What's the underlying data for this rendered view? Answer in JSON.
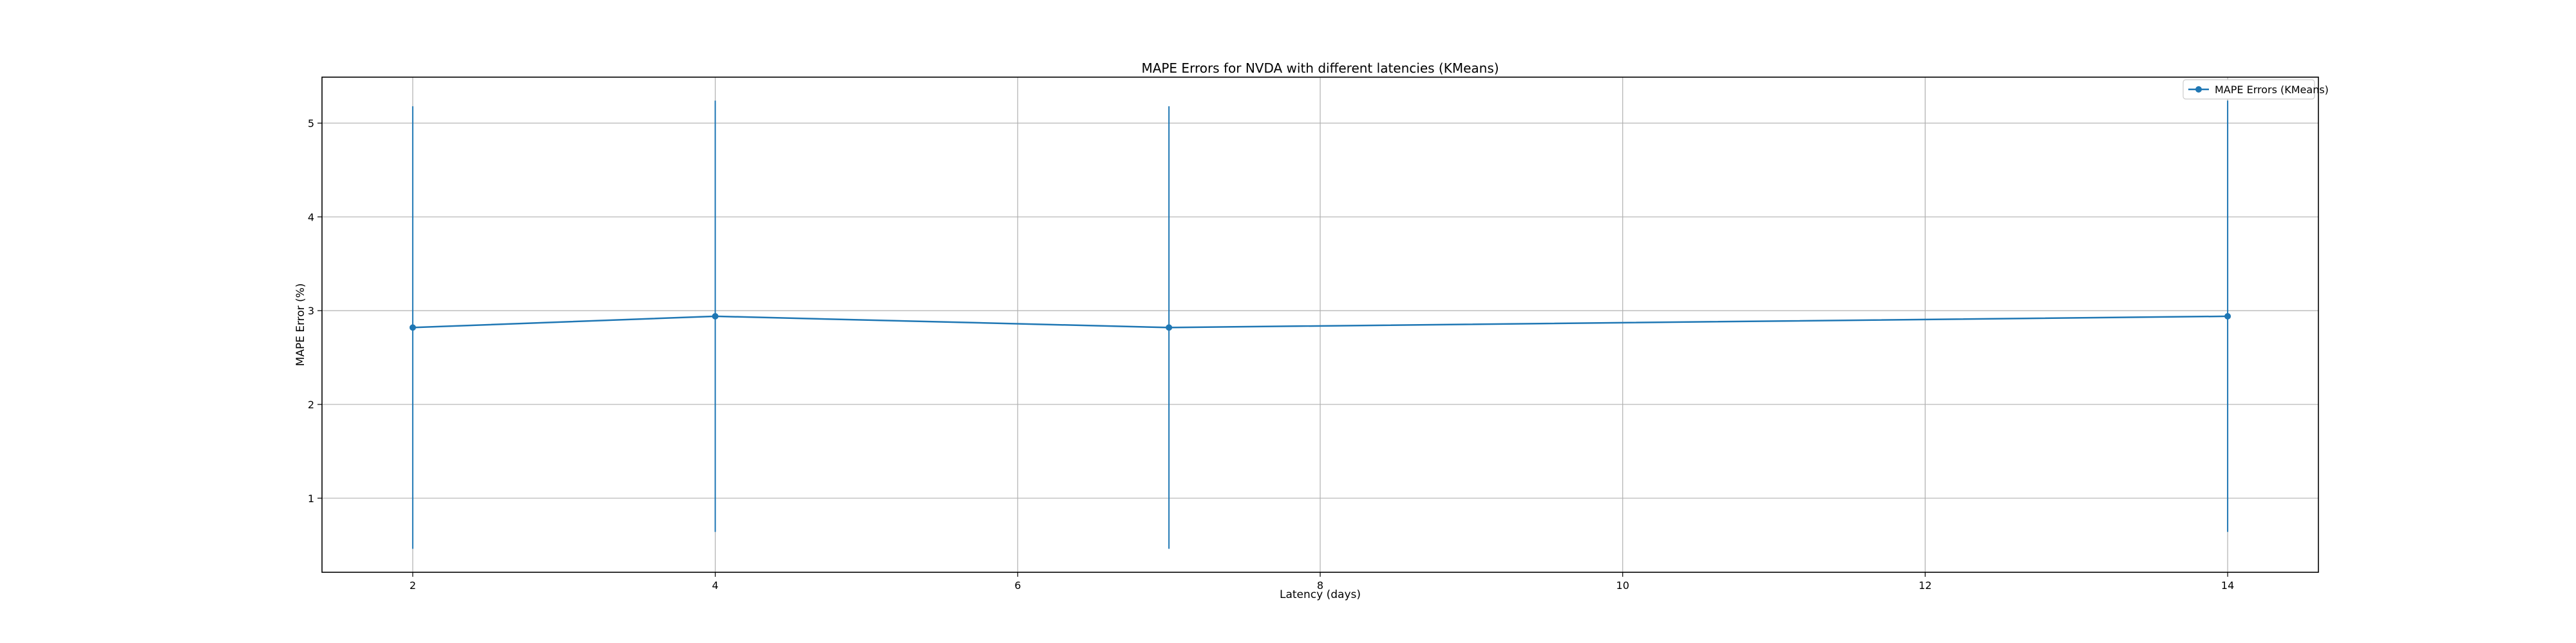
{
  "chart_data": {
    "type": "line",
    "title": "MAPE Errors for NVDA with different latencies (KMeans)",
    "xlabel": "Latency (days)",
    "ylabel": "MAPE Error (%)",
    "x": [
      2,
      4,
      7,
      14
    ],
    "series": [
      {
        "name": "MAPE Errors (KMeans)",
        "values": [
          2.82,
          2.94,
          2.82,
          2.94
        ],
        "error": [
          2.36,
          2.3,
          2.36,
          2.3
        ],
        "color": "#1f77b4",
        "marker": "circle"
      }
    ],
    "xlim": [
      1.4,
      14.6
    ],
    "ylim": [
      0.21,
      5.49
    ],
    "xticks": [
      2,
      4,
      6,
      8,
      10,
      12,
      14
    ],
    "yticks": [
      1,
      2,
      3,
      4,
      5
    ],
    "grid": true,
    "legend_position": "top-right"
  }
}
